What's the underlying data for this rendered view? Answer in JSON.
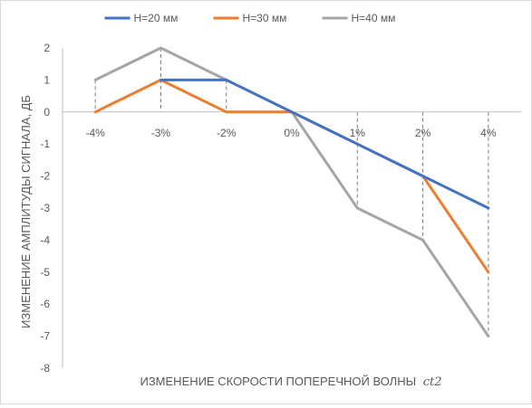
{
  "chart_data": {
    "type": "line",
    "title": "",
    "xlabel": "ИЗМЕНЕНИЕ СКОРОСТИ ПОПЕРЕЧНОЙ ВОЛНЫ",
    "xlabel_symbol": "ct2",
    "ylabel": "ИЗМЕНЕНИЕ АМПЛИТУДЫ СИГНАЛА, ДБ",
    "categories": [
      "-4%",
      "-3%",
      "-2%",
      "0%",
      "1%",
      "2%",
      "4%"
    ],
    "ylim": [
      -8,
      2
    ],
    "yticks": [
      "2",
      "1",
      "0",
      "-1",
      "-2",
      "-3",
      "-4",
      "-5",
      "-6",
      "-7",
      "-8"
    ],
    "grid": false,
    "drop_lines": true,
    "legend_position": "top",
    "series": [
      {
        "name": "Н=20 мм",
        "color": "#4472c4",
        "values": [
          null,
          1,
          1,
          0,
          -1,
          -2,
          -3
        ]
      },
      {
        "name": "Н=30 мм",
        "color": "#ed7d31",
        "values": [
          0,
          1,
          0,
          0,
          -1,
          -2,
          -5
        ]
      },
      {
        "name": "Н=40 мм",
        "color": "#a5a5a5",
        "values": [
          1,
          2,
          1,
          0,
          -3,
          -4,
          -7
        ]
      }
    ]
  }
}
